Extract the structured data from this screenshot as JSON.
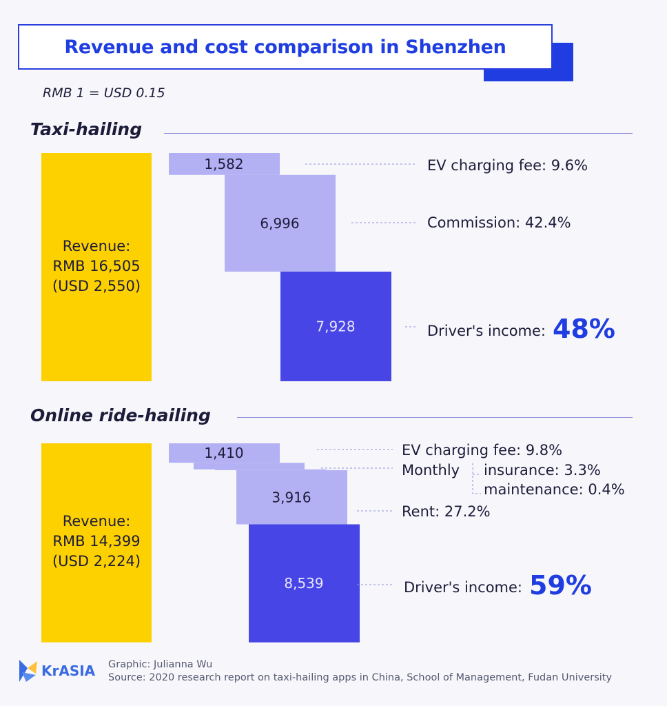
{
  "title": "Revenue and cost comparison in Shenzhen",
  "exchange_rate": "RMB 1 = USD 0.15",
  "colors": {
    "revenue": "#fdd000",
    "cost": "#b3b1f3",
    "income": "#4845e6",
    "accent": "#1f3de0"
  },
  "chart_data": [
    {
      "type": "waterfall",
      "title": "Taxi-hailing",
      "revenue": {
        "label_line1": "Revenue:",
        "label_line2": "RMB 16,505",
        "label_line3": "(USD 2,550)",
        "value": 16505
      },
      "segments": [
        {
          "value": 1582,
          "value_label": "1,582",
          "name": "EV charging fee: 9.6%",
          "kind": "cost"
        },
        {
          "value": 6996,
          "value_label": "6,996",
          "name": "Commission: 42.4%",
          "kind": "cost"
        },
        {
          "value": 7928,
          "value_label": "7,928",
          "name": "Driver's income:",
          "highlight": "48%",
          "kind": "income"
        }
      ]
    },
    {
      "type": "waterfall",
      "title": "Online ride-hailing",
      "revenue": {
        "label_line1": "Revenue:",
        "label_line2": "RMB 14,399",
        "label_line3": "(USD 2,224)",
        "value": 14399
      },
      "segments": [
        {
          "value": 1410,
          "value_label": "1,410",
          "name": "EV charging fee: 9.8%",
          "kind": "cost"
        },
        {
          "percent": 3.3,
          "name": "insurance: 3.3%",
          "group": "Monthly",
          "kind": "cost"
        },
        {
          "percent": 0.4,
          "name": "maintenance: 0.4%",
          "group": "Monthly",
          "kind": "cost"
        },
        {
          "value": 3916,
          "value_label": "3,916",
          "name": "Rent: 27.2%",
          "kind": "cost"
        },
        {
          "value": 8539,
          "value_label": "8,539",
          "name": "Driver's income:",
          "highlight": "59%",
          "kind": "income"
        }
      ]
    }
  ],
  "footer": {
    "logo": "KrASIA",
    "credit": "Graphic: Julianna Wu",
    "source": "Source: 2020 research report on taxi-hailing apps in China, School of Management, Fudan University"
  }
}
